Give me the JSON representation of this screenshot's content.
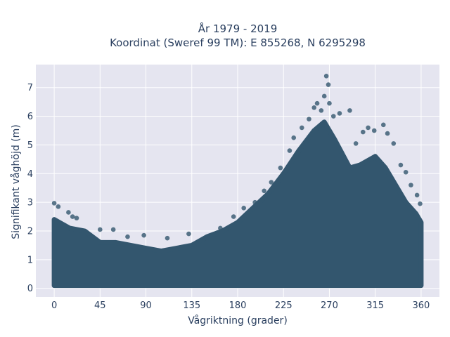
{
  "chart_data": {
    "type": "scatter",
    "title_line1": "År 1979 - 2019",
    "title_line2": "Koordinat (Sweref 99 TM): E 855268, N 6295298",
    "xlabel": "Vågriktning (grader)",
    "ylabel": "Signifikant våghöjd (m)",
    "xlim": [
      -18,
      378
    ],
    "ylim": [
      -0.3,
      7.8
    ],
    "xticks": [
      0,
      45,
      90,
      135,
      180,
      225,
      270,
      315,
      360
    ],
    "yticks": [
      0,
      1,
      2,
      3,
      4,
      5,
      6,
      7
    ],
    "grid": true,
    "marker_color": "#33566e",
    "background_color": "#e5e5f0",
    "envelope": {
      "direction_deg": [
        0,
        15,
        30,
        45,
        60,
        75,
        90,
        105,
        120,
        135,
        150,
        165,
        180,
        195,
        210,
        225,
        240,
        255,
        265,
        275,
        290,
        300,
        315,
        325,
        335,
        345,
        355,
        360
      ],
      "upper_hs_m": [
        2.4,
        2.1,
        2.0,
        1.6,
        1.6,
        1.5,
        1.4,
        1.3,
        1.4,
        1.5,
        1.8,
        2.0,
        2.3,
        2.8,
        3.3,
        4.0,
        4.8,
        5.5,
        5.8,
        5.2,
        4.2,
        4.3,
        4.6,
        4.2,
        3.6,
        3.0,
        2.6,
        2.3
      ],
      "lower_hs_m": 0.1
    },
    "outliers": [
      {
        "x": 0,
        "y": 2.97
      },
      {
        "x": 4,
        "y": 2.85
      },
      {
        "x": 14,
        "y": 2.65
      },
      {
        "x": 18,
        "y": 2.5
      },
      {
        "x": 22,
        "y": 2.45
      },
      {
        "x": 45,
        "y": 2.05
      },
      {
        "x": 58,
        "y": 2.05
      },
      {
        "x": 72,
        "y": 1.8
      },
      {
        "x": 88,
        "y": 1.85
      },
      {
        "x": 111,
        "y": 1.75
      },
      {
        "x": 132,
        "y": 1.9
      },
      {
        "x": 163,
        "y": 2.1
      },
      {
        "x": 176,
        "y": 2.5
      },
      {
        "x": 186,
        "y": 2.8
      },
      {
        "x": 197,
        "y": 3.0
      },
      {
        "x": 206,
        "y": 3.4
      },
      {
        "x": 213,
        "y": 3.7
      },
      {
        "x": 222,
        "y": 4.2
      },
      {
        "x": 231,
        "y": 4.8
      },
      {
        "x": 235,
        "y": 5.25
      },
      {
        "x": 243,
        "y": 5.6
      },
      {
        "x": 250,
        "y": 5.9
      },
      {
        "x": 255,
        "y": 6.3
      },
      {
        "x": 258,
        "y": 6.45
      },
      {
        "x": 262,
        "y": 6.2
      },
      {
        "x": 265,
        "y": 6.7
      },
      {
        "x": 267,
        "y": 7.4
      },
      {
        "x": 269,
        "y": 7.1
      },
      {
        "x": 270,
        "y": 6.45
      },
      {
        "x": 274,
        "y": 6.0
      },
      {
        "x": 280,
        "y": 6.1
      },
      {
        "x": 290,
        "y": 6.2
      },
      {
        "x": 296,
        "y": 5.05
      },
      {
        "x": 303,
        "y": 5.45
      },
      {
        "x": 308,
        "y": 5.6
      },
      {
        "x": 314,
        "y": 5.5
      },
      {
        "x": 323,
        "y": 5.7
      },
      {
        "x": 327,
        "y": 5.4
      },
      {
        "x": 333,
        "y": 5.05
      },
      {
        "x": 340,
        "y": 4.3
      },
      {
        "x": 345,
        "y": 4.05
      },
      {
        "x": 350,
        "y": 3.6
      },
      {
        "x": 356,
        "y": 3.25
      },
      {
        "x": 359,
        "y": 2.95
      }
    ]
  }
}
